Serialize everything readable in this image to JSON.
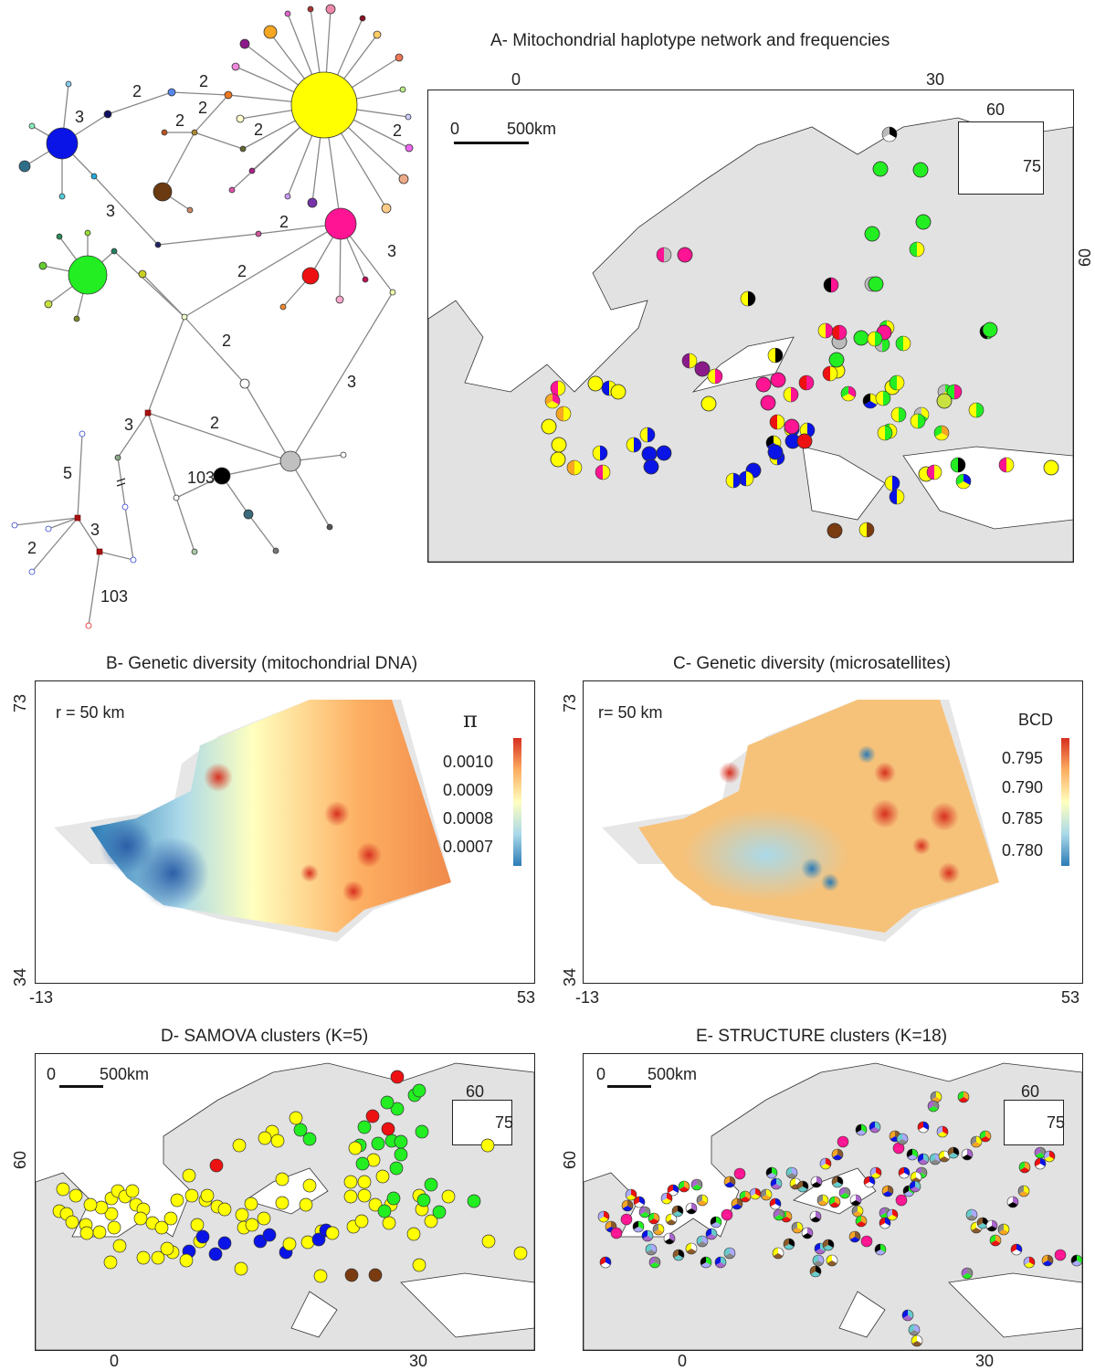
{
  "panel_a": {
    "title": "A- Mitochondrial haplotype network and frequencies",
    "top_ticks": [
      "0",
      "30"
    ],
    "right_tick": "60",
    "scale_zero": "0",
    "scale_label": "500km",
    "inset_top": "60",
    "inset_right": "75",
    "network_labels": [
      "2",
      "2",
      "2",
      "3",
      "2",
      "2",
      "2",
      "3",
      "3",
      "2",
      "2",
      "3",
      "2",
      "3",
      "2",
      "5",
      "3",
      "2",
      "103"
    ]
  },
  "panel_b": {
    "title": "B- Genetic diversity (mitochondrial DNA)",
    "radius": "r = 50 km",
    "legend_title": "π",
    "legend_values": [
      "0.0010",
      "0.0009",
      "0.0008",
      "0.0007"
    ],
    "y_top": "73",
    "y_bottom": "34",
    "x_left": "-13",
    "x_right": "53"
  },
  "panel_c": {
    "title": "C- Genetic diversity (microsatellites)",
    "radius": "r= 50 km",
    "legend_title": "BCD",
    "legend_values": [
      "0.795",
      "0.790",
      "0.785",
      "0.780"
    ],
    "y_top": "73",
    "y_bottom": "34",
    "x_left": "-13",
    "x_right": "53"
  },
  "panel_d": {
    "title": "D- SAMOVA clusters (K=5)",
    "scale_zero": "0",
    "scale_label": "500km",
    "inset_top": "60",
    "inset_right": "75",
    "y_tick": "60",
    "x_ticks": [
      "0",
      "30"
    ]
  },
  "panel_e": {
    "title": "E- STRUCTURE clusters (K=18)",
    "scale_zero": "0",
    "scale_label": "500km",
    "inset_top": "60",
    "inset_right": "75",
    "y_tick": "60",
    "x_ticks": [
      "0",
      "30"
    ]
  },
  "colors": {
    "land": "#e2e2e2",
    "yellow": "#ffff00",
    "green": "#22ee22",
    "blue": "#0a14e6",
    "magenta": "#ff1493",
    "red": "#ee1111",
    "brown": "#7a3b10",
    "gradient": [
      "#d7301f",
      "#fdae61",
      "#ffffbf",
      "#abd9e9",
      "#2c7bb6"
    ]
  }
}
